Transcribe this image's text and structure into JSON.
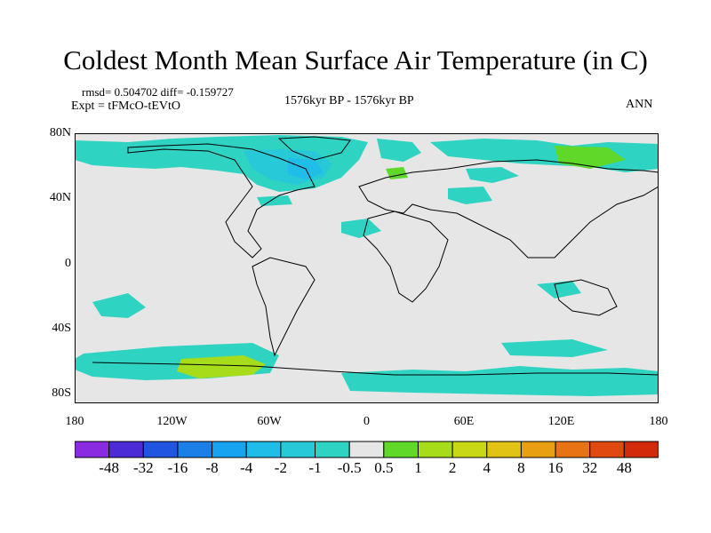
{
  "title": "Coldest Month Mean Surface Air Temperature (in C)",
  "rmsd_line": "rmsd= 0.504702 diff= -0.159727",
  "expt_line": "Expt = tFMcO-tEVtO",
  "period": "1576kyr BP - 1576kyr BP",
  "season": "ANN",
  "x_ticks": [
    "180",
    "120W",
    "60W",
    "0",
    "60E",
    "120E",
    "180"
  ],
  "y_ticks": [
    "80N",
    "40N",
    "0",
    "40S",
    "80S"
  ],
  "colorbar": {
    "labels": [
      "-48",
      "-32",
      "-16",
      "-8",
      "-4",
      "-2",
      "-1",
      "-0.5",
      "0.5",
      "1",
      "2",
      "4",
      "8",
      "16",
      "32",
      "48"
    ],
    "colors": [
      "#8a2be2",
      "#4b2bd6",
      "#1f55e0",
      "#1a80e8",
      "#18a3f0",
      "#20bde8",
      "#27c9d8",
      "#2ed3c2",
      "#e6e6e6",
      "#5fd82a",
      "#a6dc1a",
      "#c8d815",
      "#e0c315",
      "#e89f12",
      "#e87314",
      "#e04a10",
      "#d42a0c"
    ]
  }
}
